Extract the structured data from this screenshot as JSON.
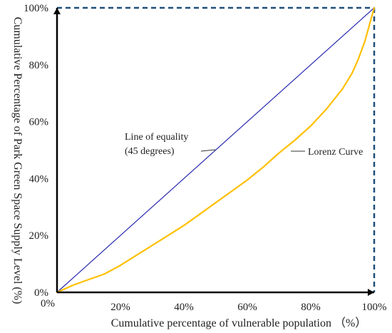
{
  "chart_data": {
    "type": "line",
    "xlabel": "Cumulative percentage of vulnerable population （%）",
    "ylabel": "Cumulative Percentage of Park Green Space Supply Level (%)",
    "xlim": [
      0,
      100
    ],
    "ylim": [
      0,
      100
    ],
    "x_ticks": [
      "0%",
      "20%",
      "40%",
      "60%",
      "80%",
      "100%"
    ],
    "y_ticks": [
      "0%",
      "20%",
      "40%",
      "60%",
      "80%",
      "100%"
    ],
    "grid": false,
    "series": [
      {
        "name": "Line of equality (45 degrees)",
        "color": "#2b2bb0",
        "x": [
          0,
          100
        ],
        "y": [
          0,
          100
        ]
      },
      {
        "name": "Lorenz Curve",
        "color": "#ffc000",
        "x": [
          0,
          5,
          10,
          15,
          20,
          25,
          30,
          35,
          40,
          45,
          50,
          55,
          60,
          65,
          70,
          75,
          80,
          85,
          90,
          93,
          95,
          97,
          98,
          99,
          100
        ],
        "y": [
          0,
          2.5,
          4.5,
          6.5,
          9.5,
          13,
          16.5,
          20,
          23.5,
          27.5,
          31.5,
          35.5,
          39.5,
          44,
          49,
          53.5,
          58.5,
          64.5,
          71.5,
          77,
          82,
          88,
          92,
          96,
          100
        ]
      }
    ],
    "annotations": [
      {
        "text_lines": [
          "Line of equality",
          "(45 degrees)"
        ],
        "series": 0
      },
      {
        "text_lines": [
          "Lorenz Curve"
        ],
        "series": 1
      }
    ],
    "frame": {
      "style": "dashed",
      "color": "#1f4e79",
      "sides": [
        "top",
        "right"
      ]
    },
    "axis_color": "#000000"
  }
}
